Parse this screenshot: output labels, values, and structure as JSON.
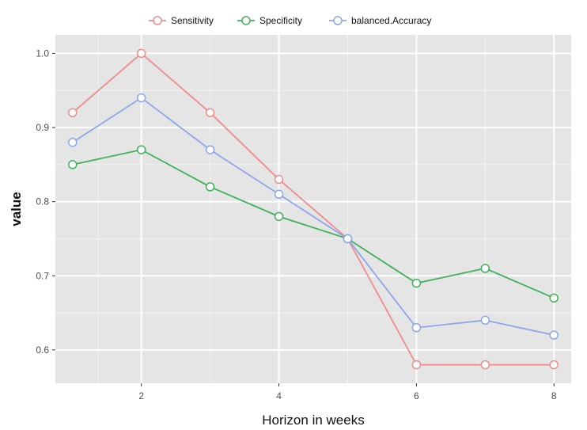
{
  "chart_data": {
    "type": "line",
    "title": "",
    "xlabel": "Horizon in weeks",
    "ylabel": "value",
    "x": [
      1,
      2,
      3,
      4,
      5,
      6,
      7,
      8
    ],
    "xlim": [
      0.75,
      8.25
    ],
    "ylim": [
      0.555,
      1.025
    ],
    "x_ticks": [
      2,
      4,
      6,
      8
    ],
    "x_tick_labels": [
      "2",
      "4",
      "6",
      "8"
    ],
    "y_ticks": [
      0.6,
      0.7,
      0.8,
      0.9,
      1.0
    ],
    "y_tick_labels": [
      "0.6",
      "0.7",
      "0.8",
      "0.9",
      "1.0"
    ],
    "grid": true,
    "legend_position": "top",
    "series": [
      {
        "name": "Sensitivity",
        "color": "#f08b8b",
        "values": [
          0.92,
          1.0,
          0.92,
          0.83,
          0.75,
          0.58,
          0.58,
          0.58
        ]
      },
      {
        "name": "Specificity",
        "color": "#3fb15a",
        "values": [
          0.85,
          0.87,
          0.82,
          0.78,
          0.75,
          0.69,
          0.71,
          0.67
        ]
      },
      {
        "name": "balanced.Accuracy",
        "color": "#8ca6ea",
        "values": [
          0.88,
          0.94,
          0.87,
          0.81,
          0.75,
          0.63,
          0.64,
          0.62
        ]
      }
    ]
  }
}
